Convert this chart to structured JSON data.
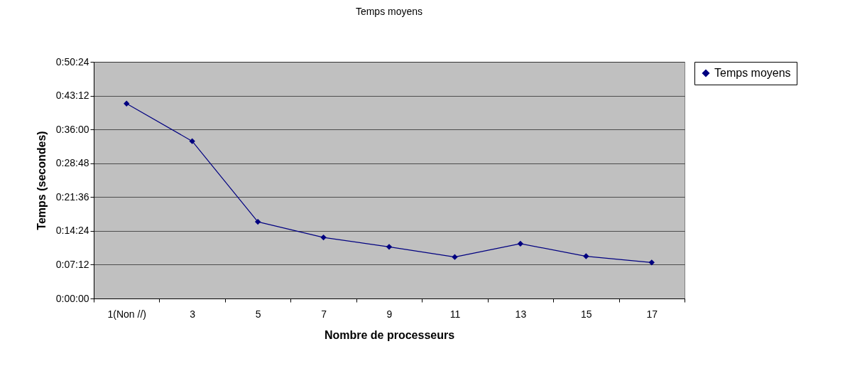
{
  "chart_data": {
    "type": "line",
    "title": "Temps moyens",
    "xlabel": "Nombre de processeurs",
    "ylabel": "Temps (secondes)",
    "categories": [
      "1(Non //)",
      "3",
      "5",
      "7",
      "9",
      "11",
      "13",
      "15",
      "17"
    ],
    "series": [
      {
        "name": "Temps moyens",
        "color": "#000080",
        "values": [
          2490,
          2010,
          980,
          780,
          660,
          530,
          700,
          540,
          460
        ]
      }
    ],
    "ylim": [
      0,
      3024
    ],
    "yticks": [
      {
        "value": 0,
        "label": "0:00:00"
      },
      {
        "value": 432,
        "label": "0:07:12"
      },
      {
        "value": 864,
        "label": "0:14:24"
      },
      {
        "value": 1296,
        "label": "0:21:36"
      },
      {
        "value": 1728,
        "label": "0:28:48"
      },
      {
        "value": 2160,
        "label": "0:36:00"
      },
      {
        "value": 2592,
        "label": "0:43:12"
      },
      {
        "value": 3024,
        "label": "0:50:24"
      }
    ],
    "grid": "y",
    "legend": "right",
    "marker": "diamond",
    "line_style": "solid"
  }
}
